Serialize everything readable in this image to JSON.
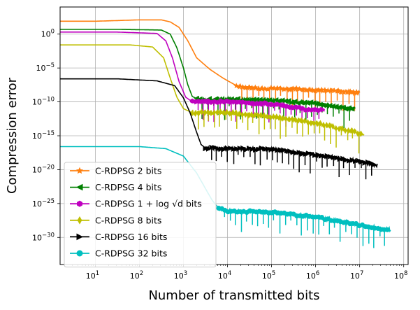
{
  "chart_data": {
    "type": "line",
    "xscale": "log",
    "yscale": "log",
    "xlabel": "Number of transmitted bits",
    "ylabel": "Compression error",
    "xlim_exp": [
      0.2,
      8.1
    ],
    "ylim_exp": [
      -34,
      4
    ],
    "grid": true,
    "legend_position": "lower-left",
    "x_ticks": [
      {
        "exp": 1,
        "label": "10",
        "sup": "1"
      },
      {
        "exp": 2,
        "label": "10",
        "sup": "2"
      },
      {
        "exp": 3,
        "label": "10",
        "sup": "3"
      },
      {
        "exp": 4,
        "label": "10",
        "sup": "4"
      },
      {
        "exp": 5,
        "label": "10",
        "sup": "5"
      },
      {
        "exp": 6,
        "label": "10",
        "sup": "6"
      },
      {
        "exp": 7,
        "label": "10",
        "sup": "7"
      },
      {
        "exp": 8,
        "label": "10",
        "sup": "8"
      }
    ],
    "y_ticks": [
      {
        "exp": 0,
        "label": "10",
        "sup": "0"
      },
      {
        "exp": -5,
        "label": "10",
        "sup": "−5"
      },
      {
        "exp": -10,
        "label": "10",
        "sup": "−10"
      },
      {
        "exp": -15,
        "label": "10",
        "sup": "−15"
      },
      {
        "exp": -20,
        "label": "10",
        "sup": "−20"
      },
      {
        "exp": -25,
        "label": "10",
        "sup": "−25"
      },
      {
        "exp": -30,
        "label": "10",
        "sup": "−30"
      }
    ],
    "series": [
      {
        "name": "C-RDPSG 2 bits",
        "color": "#ff7f0e",
        "marker": "star",
        "points": [
          [
            0.2,
            1.9
          ],
          [
            1.0,
            1.9
          ],
          [
            2.0,
            2.1
          ],
          [
            2.5,
            2.1
          ],
          [
            2.7,
            1.8
          ],
          [
            2.9,
            1.0
          ],
          [
            3.1,
            -1.0
          ],
          [
            3.3,
            -3.5
          ],
          [
            3.6,
            -5.2
          ],
          [
            3.9,
            -6.5
          ],
          [
            4.2,
            -7.6
          ],
          [
            4.6,
            -8.0
          ],
          [
            5.5,
            -8.1
          ],
          [
            6.5,
            -8.4
          ],
          [
            7.0,
            -8.7
          ]
        ],
        "noise_from": 4.2,
        "noise_to": 7.0
      },
      {
        "name": "C-RDPSG 4 bits",
        "color": "#008000",
        "marker": "triangle-left",
        "points": [
          [
            0.2,
            0.7
          ],
          [
            1.5,
            0.7
          ],
          [
            2.5,
            0.6
          ],
          [
            2.7,
            0.0
          ],
          [
            2.85,
            -2.0
          ],
          [
            3.0,
            -5.0
          ],
          [
            3.1,
            -7.5
          ],
          [
            3.2,
            -9.2
          ],
          [
            3.35,
            -9.7
          ],
          [
            4.0,
            -9.6
          ],
          [
            5.0,
            -9.8
          ],
          [
            6.0,
            -10.2
          ],
          [
            6.5,
            -10.8
          ],
          [
            6.9,
            -11.1
          ]
        ],
        "noise_from": 3.3,
        "noise_to": 6.9
      },
      {
        "name": "C-RDPSG 1 + log √d bits",
        "color": "#bf00bf",
        "marker": "hexagon",
        "points": [
          [
            0.2,
            0.3
          ],
          [
            1.5,
            0.3
          ],
          [
            2.4,
            0.1
          ],
          [
            2.6,
            -1.0
          ],
          [
            2.75,
            -3.5
          ],
          [
            2.9,
            -7.0
          ],
          [
            3.05,
            -9.3
          ],
          [
            3.2,
            -10.0
          ],
          [
            4.0,
            -10.0
          ],
          [
            5.0,
            -10.3
          ],
          [
            5.8,
            -11.1
          ],
          [
            6.2,
            -11.2
          ]
        ],
        "noise_from": 3.2,
        "noise_to": 6.2
      },
      {
        "name": "C-RDPSG 8 bits",
        "color": "#bfbf00",
        "marker": "thin-diamond",
        "points": [
          [
            0.2,
            -1.6
          ],
          [
            1.8,
            -1.6
          ],
          [
            2.3,
            -1.9
          ],
          [
            2.55,
            -3.5
          ],
          [
            2.7,
            -6.5
          ],
          [
            2.85,
            -9.3
          ],
          [
            3.0,
            -11.0
          ],
          [
            3.2,
            -11.6
          ],
          [
            4.0,
            -11.6
          ],
          [
            5.0,
            -12.2
          ],
          [
            6.0,
            -13.1
          ],
          [
            7.0,
            -14.6
          ],
          [
            7.1,
            -14.7
          ]
        ],
        "noise_from": 3.2,
        "noise_to": 7.1
      },
      {
        "name": "C-RDPSG 16 bits",
        "color": "#000000",
        "marker": "triangle-right",
        "points": [
          [
            0.2,
            -6.6
          ],
          [
            1.5,
            -6.6
          ],
          [
            2.4,
            -6.9
          ],
          [
            2.8,
            -7.6
          ],
          [
            3.0,
            -9.4
          ],
          [
            3.15,
            -11.6
          ],
          [
            3.3,
            -14.5
          ],
          [
            3.4,
            -16.3
          ],
          [
            3.5,
            -16.8
          ],
          [
            5.0,
            -17.0
          ],
          [
            6.0,
            -17.8
          ],
          [
            7.0,
            -18.8
          ],
          [
            7.4,
            -19.3
          ]
        ],
        "noise_from": 3.5,
        "noise_to": 7.4
      },
      {
        "name": "C-RDPSG 32 bits",
        "color": "#00bfbf",
        "marker": "circle",
        "points": [
          [
            0.2,
            -16.6
          ],
          [
            2.0,
            -16.6
          ],
          [
            2.6,
            -16.9
          ],
          [
            3.0,
            -18.0
          ],
          [
            3.3,
            -20.5
          ],
          [
            3.5,
            -22.8
          ],
          [
            3.65,
            -24.5
          ],
          [
            3.8,
            -25.7
          ],
          [
            4.0,
            -26.1
          ],
          [
            5.0,
            -26.3
          ],
          [
            6.0,
            -27.0
          ],
          [
            7.0,
            -28.2
          ],
          [
            7.7,
            -28.9
          ]
        ],
        "noise_from": 3.8,
        "noise_to": 7.7
      }
    ]
  }
}
